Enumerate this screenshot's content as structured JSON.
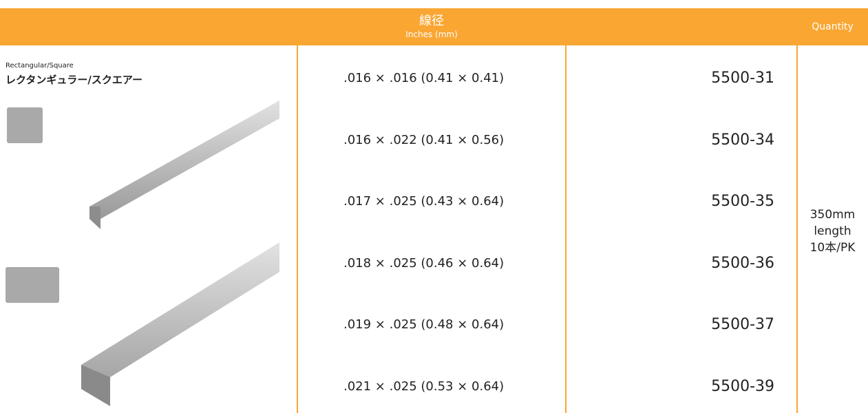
{
  "header": {
    "title": "線径",
    "subtitle": "Inches (mm)",
    "quantity": "Quantity"
  },
  "product": {
    "name_en": "Rectangular/Square",
    "name_ja": "レクタンギュラー/スクエアー"
  },
  "table": {
    "rows": [
      [
        ".016 × .016 (0.41 × 0.41)",
        "5500-31"
      ],
      [
        ".016 × .022 (0.41 × 0.56)",
        "5500-34"
      ],
      [
        ".017 × .025 (0.43 × 0.64)",
        "5500-35"
      ],
      [
        ".018 × .025 (0.46 × 0.64)",
        "5500-36"
      ],
      [
        ".019 × .025 (0.48 × 0.64)",
        "5500-37"
      ],
      [
        ".021 × .025 (0.53 × 0.64)",
        "5500-39"
      ]
    ]
  },
  "quantity": [
    "350mm",
    "length",
    "10本/PK"
  ]
}
